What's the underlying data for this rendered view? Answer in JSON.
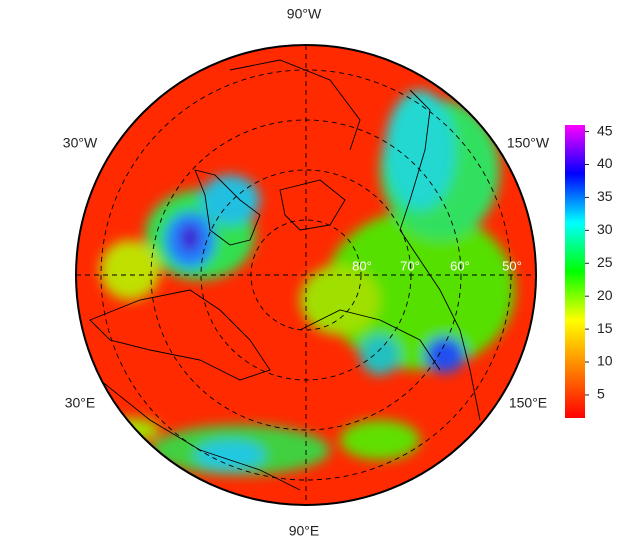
{
  "map": {
    "longitude_labels": [
      "90°W",
      "30°W",
      "150°W",
      "30°E",
      "150°E",
      "90°E"
    ],
    "latitude_labels": [
      "80°",
      "70°",
      "60°",
      "50°"
    ],
    "colorbar": {
      "lim": [
        1.5,
        46
      ],
      "ticks": [
        5,
        10,
        15,
        20,
        25,
        30,
        35,
        40,
        45
      ],
      "colors": [
        "#ff0000",
        "#ff8000",
        "#ffff00",
        "#00ff00",
        "#00ffff",
        "#0000ff",
        "#ff00ff"
      ]
    }
  }
}
